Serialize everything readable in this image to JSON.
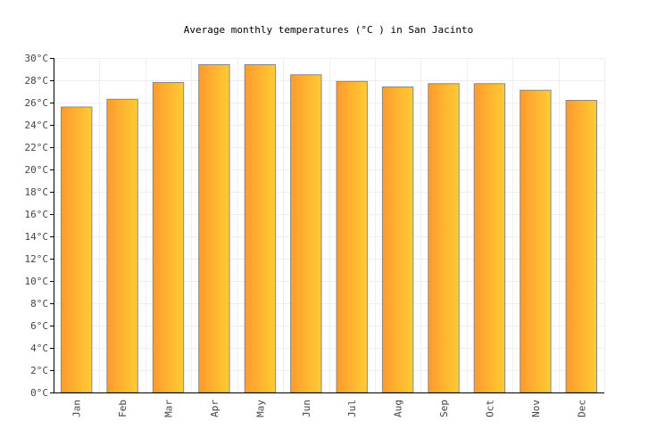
{
  "chart_data": {
    "type": "bar",
    "title": "Average monthly temperatures (°C ) in San Jacinto",
    "xlabel": "",
    "ylabel": "",
    "categories": [
      "Jan",
      "Feb",
      "Mar",
      "Apr",
      "May",
      "Jun",
      "Jul",
      "Aug",
      "Sep",
      "Oct",
      "Nov",
      "Dec"
    ],
    "values": [
      25.6,
      26.3,
      27.8,
      29.4,
      29.4,
      28.5,
      27.9,
      27.4,
      27.7,
      27.7,
      27.1,
      26.2
    ],
    "ylim": [
      0,
      30
    ],
    "yticks": [
      0,
      2,
      4,
      6,
      8,
      10,
      12,
      14,
      16,
      18,
      20,
      22,
      24,
      26,
      28,
      30
    ],
    "ytick_labels": [
      "0°C",
      "2°C",
      "4°C",
      "6°C",
      "8°C",
      "10°C",
      "12°C",
      "14°C",
      "16°C",
      "18°C",
      "20°C",
      "22°C",
      "24°C",
      "26°C",
      "28°C",
      "30°C"
    ],
    "grid": true,
    "legend": "none",
    "colors": {
      "bar_gradient_start": "#ff9a2e",
      "bar_gradient_end": "#ffcc33",
      "bar_border": "#888888",
      "grid": "#eeeeee",
      "axis": "#000000"
    }
  }
}
